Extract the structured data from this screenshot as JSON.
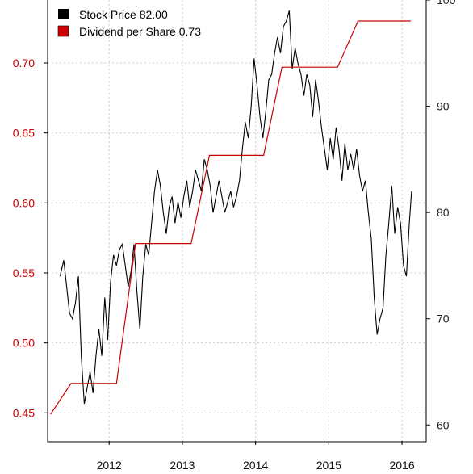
{
  "chart_data": {
    "type": "line",
    "title": "",
    "xlabel": "",
    "ylabel_left": "",
    "ylabel_right": "",
    "grid": true,
    "legend": "top-left",
    "x_range": [
      2011.16,
      2016.33
    ],
    "x_ticks": [
      "2012",
      "2013",
      "2014",
      "2015",
      "2016"
    ],
    "left_axis": {
      "range": [
        0.43,
        0.745
      ],
      "ticks": [
        "0.45",
        "0.50",
        "0.55",
        "0.60",
        "0.65",
        "0.70"
      ],
      "color": "#cc0000"
    },
    "right_axis": {
      "range": [
        58.5,
        100
      ],
      "ticks": [
        "60",
        "70",
        "80",
        "90",
        "100"
      ],
      "color": "#222222"
    },
    "series": [
      {
        "name": "Stock Price",
        "legend_label": "Stock Price 82.00",
        "axis": "right",
        "color": "#000000",
        "x": [
          2011.33,
          2011.38,
          2011.42,
          2011.46,
          2011.5,
          2011.54,
          2011.58,
          2011.62,
          2011.66,
          2011.7,
          2011.74,
          2011.78,
          2011.82,
          2011.86,
          2011.9,
          2011.94,
          2011.98,
          2012.02,
          2012.06,
          2012.1,
          2012.14,
          2012.18,
          2012.22,
          2012.26,
          2012.3,
          2012.34,
          2012.38,
          2012.42,
          2012.46,
          2012.5,
          2012.54,
          2012.58,
          2012.62,
          2012.66,
          2012.7,
          2012.74,
          2012.78,
          2012.82,
          2012.86,
          2012.9,
          2012.94,
          2012.98,
          2013.02,
          2013.06,
          2013.1,
          2013.14,
          2013.18,
          2013.22,
          2013.26,
          2013.3,
          2013.34,
          2013.38,
          2013.42,
          2013.46,
          2013.5,
          2013.54,
          2013.58,
          2013.62,
          2013.66,
          2013.7,
          2013.74,
          2013.78,
          2013.82,
          2013.86,
          2013.9,
          2013.94,
          2013.98,
          2014.02,
          2014.06,
          2014.1,
          2014.14,
          2014.18,
          2014.22,
          2014.26,
          2014.3,
          2014.34,
          2014.38,
          2014.42,
          2014.46,
          2014.5,
          2014.54,
          2014.58,
          2014.62,
          2014.66,
          2014.7,
          2014.74,
          2014.78,
          2014.82,
          2014.86,
          2014.9,
          2014.94,
          2014.98,
          2015.02,
          2015.06,
          2015.1,
          2015.14,
          2015.18,
          2015.22,
          2015.26,
          2015.3,
          2015.34,
          2015.38,
          2015.42,
          2015.46,
          2015.5,
          2015.54,
          2015.58,
          2015.62,
          2015.66,
          2015.7,
          2015.74,
          2015.78,
          2015.82,
          2015.86,
          2015.9,
          2015.94,
          2015.98,
          2016.02,
          2016.06,
          2016.1,
          2016.13
        ],
        "y": [
          74.0,
          75.5,
          73.0,
          70.5,
          70.0,
          71.5,
          74.0,
          66.5,
          62.0,
          63.5,
          65.0,
          63.0,
          66.5,
          69.0,
          66.5,
          72.0,
          68.0,
          73.5,
          76.0,
          75.0,
          76.5,
          77.0,
          75.0,
          73.0,
          74.5,
          77.0,
          72.5,
          69.0,
          74.0,
          77.0,
          76.0,
          79.0,
          82.0,
          84.0,
          82.5,
          80.0,
          78.0,
          80.5,
          81.5,
          79.0,
          81.0,
          79.5,
          81.5,
          83.0,
          80.5,
          82.0,
          84.0,
          83.0,
          82.0,
          85.0,
          84.0,
          82.5,
          80.0,
          81.5,
          83.0,
          81.5,
          80.0,
          81.0,
          82.0,
          80.5,
          81.5,
          83.0,
          86.0,
          88.5,
          87.0,
          90.0,
          94.5,
          92.0,
          89.0,
          87.0,
          89.5,
          92.5,
          93.0,
          95.0,
          96.5,
          95.0,
          97.5,
          98.0,
          99.0,
          93.5,
          95.5,
          94.0,
          93.0,
          91.0,
          93.0,
          92.0,
          89.0,
          92.5,
          90.5,
          88.0,
          86.0,
          84.0,
          87.0,
          85.0,
          88.0,
          86.0,
          83.0,
          86.5,
          84.0,
          85.5,
          84.0,
          86.0,
          83.5,
          82.0,
          83.0,
          80.0,
          77.5,
          72.0,
          68.5,
          70.0,
          71.0,
          76.0,
          79.0,
          82.5,
          78.0,
          80.5,
          79.0,
          75.0,
          74.0,
          79.0,
          82.0
        ]
      },
      {
        "name": "Dividend per Share",
        "legend_label": "Dividend per Share  0.73",
        "axis": "left",
        "color": "#cc0000",
        "x": [
          2011.2,
          2011.48,
          2012.1,
          2012.36,
          2013.12,
          2013.37,
          2014.11,
          2014.36,
          2015.12,
          2015.4,
          2016.12
        ],
        "y": [
          0.449,
          0.471,
          0.471,
          0.571,
          0.571,
          0.634,
          0.634,
          0.697,
          0.697,
          0.73,
          0.73
        ]
      }
    ]
  }
}
